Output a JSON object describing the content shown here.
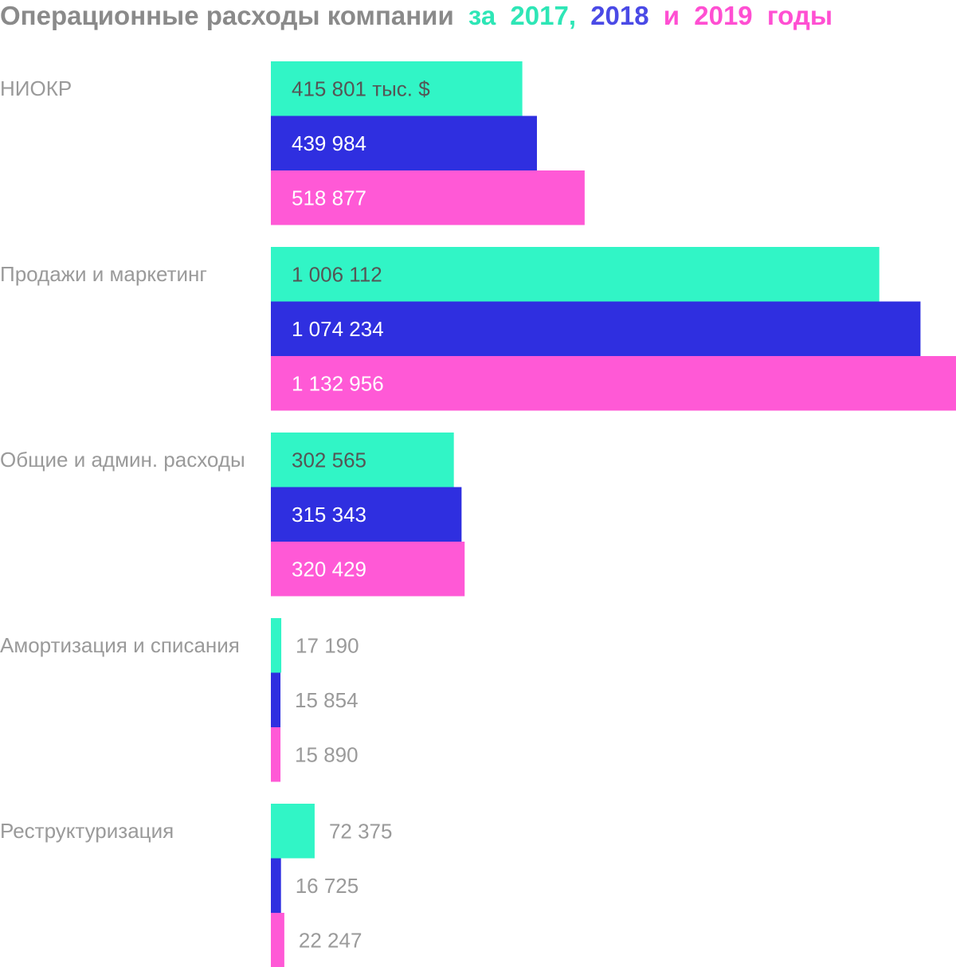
{
  "chart_data": {
    "type": "bar",
    "orientation": "horizontal",
    "title": {
      "main": "Операционные расходы компании",
      "za": "за",
      "year1": "2017,",
      "year2": "2018",
      "i": "и",
      "year3": "2019",
      "suffix": "годы"
    },
    "categories": [
      "НИОКР",
      "Продажи и маркетинг",
      "Общие и админ. расходы",
      "Амортизация и списания",
      "Реструктуризация"
    ],
    "series": [
      {
        "color": "#31f5c6",
        "text_color": "#555555",
        "values": [
          415801,
          1006112,
          302565,
          17190,
          72375
        ],
        "labels": [
          "415 801 тыс. $",
          "1 006 112",
          "302 565",
          "17 190",
          "72 375"
        ]
      },
      {
        "color": "#2f2fe0",
        "text_color": "#ffffff",
        "values": [
          439984,
          1074234,
          315343,
          15854,
          16725
        ],
        "labels": [
          "439 984",
          "1 074 234",
          "315 343",
          "15 854",
          "16 725"
        ]
      },
      {
        "color": "#ff59d6",
        "text_color": "#ffffff",
        "values": [
          518877,
          1132956,
          320429,
          15890,
          22247
        ],
        "labels": [
          "518 877",
          "1 132 956",
          "320 429",
          "15 890",
          "22 247"
        ]
      }
    ],
    "title_colors": {
      "main": "#8a8a8a",
      "year1": "#2ee6b6",
      "year2": "#4a4ae6",
      "year3": "#ff4fd2"
    },
    "xlim": [
      0,
      1132956
    ],
    "grid": false,
    "legend": "none"
  }
}
